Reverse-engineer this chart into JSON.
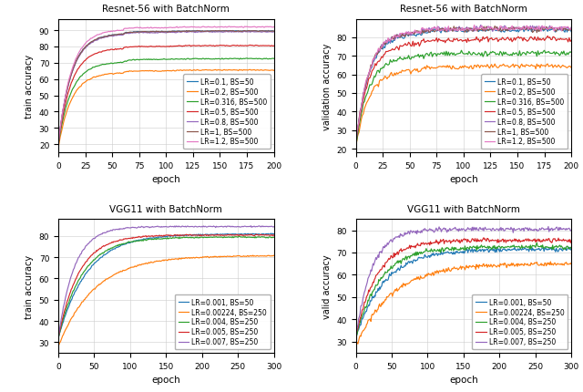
{
  "resnet_train": {
    "title": "Resnet-56 with BatchNorm",
    "ylabel": "train accuracy",
    "xlabel": "epoch",
    "xlim": [
      0,
      200
    ],
    "ylim": [
      15,
      97
    ],
    "xticks": [
      0,
      25,
      50,
      75,
      100,
      125,
      150,
      175,
      200
    ],
    "yticks": [
      20,
      30,
      40,
      50,
      60,
      70,
      80,
      90
    ],
    "series": [
      {
        "label": "LR=0.1, BS=50",
        "color": "#1f77b4",
        "plateaus": [
          88.0,
          89.0,
          89.5
        ],
        "start": 20,
        "noise": 0.15
      },
      {
        "label": "LR=0.2, BS=500",
        "color": "#ff7f0e",
        "plateaus": [
          64.0,
          65.0,
          65.5
        ],
        "start": 18,
        "noise": 0.15
      },
      {
        "label": "LR=0.316, BS=500",
        "color": "#2ca02c",
        "plateaus": [
          70.5,
          72.0,
          72.5
        ],
        "start": 20,
        "noise": 0.15
      },
      {
        "label": "LR=0.5, BS=500",
        "color": "#d62728",
        "plateaus": [
          79.0,
          80.0,
          80.5
        ],
        "start": 20,
        "noise": 0.15
      },
      {
        "label": "LR=0.8, BS=500",
        "color": "#9467bd",
        "plateaus": [
          87.5,
          88.5,
          89.0
        ],
        "start": 20,
        "noise": 0.15
      },
      {
        "label": "LR=1, BS=500",
        "color": "#8c564b",
        "plateaus": [
          88.0,
          89.0,
          89.5
        ],
        "start": 20,
        "noise": 0.15
      },
      {
        "label": "LR=1.2, BS=500",
        "color": "#e377c2",
        "plateaus": [
          90.5,
          91.5,
          92.0
        ],
        "start": 20,
        "noise": 0.15
      }
    ]
  },
  "resnet_val": {
    "title": "Resnet-56 with BatchNorm",
    "ylabel": "validation accuracy",
    "xlabel": "epoch",
    "xlim": [
      0,
      200
    ],
    "ylim": [
      18,
      90
    ],
    "xticks": [
      0,
      25,
      50,
      75,
      100,
      125,
      150,
      175,
      200
    ],
    "yticks": [
      20,
      30,
      40,
      50,
      60,
      70,
      80
    ],
    "series": [
      {
        "label": "LR=0.1, BS=50",
        "color": "#1f77b4",
        "plateaus": [
          82.0,
          83.5,
          84.0
        ],
        "start": 22,
        "noise": 0.6
      },
      {
        "label": "LR=0.2, BS=500",
        "color": "#ff7f0e",
        "plateaus": [
          62.5,
          64.0,
          64.5
        ],
        "start": 21,
        "noise": 0.6
      },
      {
        "label": "LR=0.316, BS=500",
        "color": "#2ca02c",
        "plateaus": [
          70.0,
          71.0,
          71.5
        ],
        "start": 22,
        "noise": 0.7
      },
      {
        "label": "LR=0.5, BS=500",
        "color": "#d62728",
        "plateaus": [
          77.0,
          78.5,
          79.0
        ],
        "start": 22,
        "noise": 0.7
      },
      {
        "label": "LR=0.8, BS=500",
        "color": "#9467bd",
        "plateaus": [
          83.0,
          84.5,
          85.0
        ],
        "start": 22,
        "noise": 0.7
      },
      {
        "label": "LR=1, BS=500",
        "color": "#8c564b",
        "plateaus": [
          83.0,
          84.0,
          84.5
        ],
        "start": 22,
        "noise": 0.7
      },
      {
        "label": "LR=1.2, BS=500",
        "color": "#e377c2",
        "plateaus": [
          83.5,
          84.5,
          85.0
        ],
        "start": 22,
        "noise": 0.7
      }
    ]
  },
  "vgg_train": {
    "title": "VGG11 with BatchNorm",
    "ylabel": "train accuracy",
    "xlabel": "epoch",
    "xlim": [
      0,
      300
    ],
    "ylim": [
      25,
      88
    ],
    "xticks": [
      0,
      50,
      100,
      150,
      200,
      250,
      300
    ],
    "yticks": [
      30,
      40,
      50,
      60,
      70,
      80
    ],
    "series": [
      {
        "label": "LR=0.001, BS=50",
        "color": "#1f77b4",
        "final": 81.0,
        "ramp_k": 0.025,
        "start": 32,
        "noise": 0.15
      },
      {
        "label": "LR=0.00224, BS=250",
        "color": "#ff7f0e",
        "final": 70.8,
        "ramp_k": 0.02,
        "start": 28,
        "noise": 0.15
      },
      {
        "label": "LR=0.004, BS=250",
        "color": "#2ca02c",
        "final": 79.5,
        "ramp_k": 0.03,
        "start": 32,
        "noise": 0.15
      },
      {
        "label": "LR=0.005, BS=250",
        "color": "#d62728",
        "final": 80.5,
        "ramp_k": 0.035,
        "start": 32,
        "noise": 0.15
      },
      {
        "label": "LR=0.007, BS=250",
        "color": "#9467bd",
        "final": 84.5,
        "ramp_k": 0.045,
        "start": 32,
        "noise": 0.15
      }
    ]
  },
  "vgg_val": {
    "title": "VGG11 with BatchNorm",
    "ylabel": "valid accuracy",
    "xlabel": "epoch",
    "xlim": [
      0,
      300
    ],
    "ylim": [
      25,
      85
    ],
    "xticks": [
      0,
      50,
      100,
      150,
      200,
      250,
      300
    ],
    "yticks": [
      30,
      40,
      50,
      60,
      70,
      80
    ],
    "series": [
      {
        "label": "LR=0.001, BS=50",
        "color": "#1f77b4",
        "final": 71.5,
        "ramp_k": 0.025,
        "start": 32,
        "noise": 0.5
      },
      {
        "label": "LR=0.00224, BS=250",
        "color": "#ff7f0e",
        "final": 65.0,
        "ramp_k": 0.02,
        "start": 28,
        "noise": 0.5
      },
      {
        "label": "LR=0.004, BS=250",
        "color": "#2ca02c",
        "final": 72.5,
        "ramp_k": 0.03,
        "start": 32,
        "noise": 0.5
      },
      {
        "label": "LR=0.005, BS=250",
        "color": "#d62728",
        "final": 75.5,
        "ramp_k": 0.035,
        "start": 32,
        "noise": 0.5
      },
      {
        "label": "LR=0.007, BS=250",
        "color": "#9467bd",
        "final": 80.5,
        "ramp_k": 0.045,
        "start": 32,
        "noise": 0.5
      }
    ]
  }
}
